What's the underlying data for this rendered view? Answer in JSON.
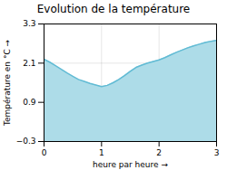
{
  "chart_data": {
    "type": "area",
    "title": "Evolution de la température",
    "xlabel": "heure par heure",
    "ylabel": "Température en °C",
    "x": [
      0,
      0.1,
      0.2,
      0.3,
      0.4,
      0.5,
      0.6,
      0.7,
      0.8,
      0.9,
      1.0,
      1.1,
      1.2,
      1.3,
      1.4,
      1.5,
      1.6,
      1.7,
      1.8,
      1.9,
      2.0,
      2.1,
      2.2,
      2.3,
      2.4,
      2.5,
      2.6,
      2.7,
      2.8,
      2.9,
      3.0
    ],
    "series": [
      {
        "type": "area",
        "color": "#addce8",
        "values": [
          2.22,
          2.13,
          2.02,
          1.91,
          1.8,
          1.7,
          1.6,
          1.54,
          1.48,
          1.43,
          1.38,
          1.42,
          1.5,
          1.6,
          1.72,
          1.85,
          1.97,
          2.04,
          2.1,
          2.15,
          2.2,
          2.27,
          2.35,
          2.43,
          2.5,
          2.57,
          2.63,
          2.68,
          2.73,
          2.77,
          2.8
        ]
      },
      {
        "type": "line",
        "color": "#61bbd4",
        "values": [
          2.22,
          2.13,
          2.02,
          1.91,
          1.8,
          1.7,
          1.6,
          1.54,
          1.48,
          1.43,
          1.38,
          1.42,
          1.5,
          1.6,
          1.72,
          1.85,
          1.97,
          2.04,
          2.1,
          2.15,
          2.2,
          2.27,
          2.35,
          2.43,
          2.5,
          2.57,
          2.63,
          2.68,
          2.73,
          2.77,
          2.8
        ]
      }
    ],
    "xlim": [
      0,
      3
    ],
    "ylim": [
      -0.3,
      3.3
    ],
    "xticks": [
      0,
      1,
      2,
      3
    ],
    "yticks": [
      -0.3,
      0.9,
      2.1,
      3.3
    ],
    "grid": true
  }
}
